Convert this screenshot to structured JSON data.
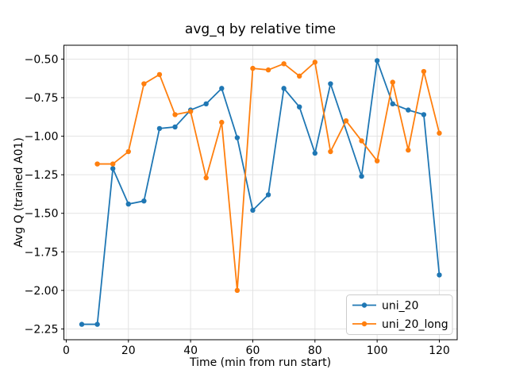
{
  "chart_data": {
    "type": "line",
    "title": "avg_q by relative time",
    "xlabel": "Time (min from run start)",
    "ylabel": "Avg Q (trained A01)",
    "xlim": [
      -0.75,
      125.75
    ],
    "ylim": [
      -2.32,
      -0.41
    ],
    "xticks": [
      0,
      20,
      40,
      60,
      80,
      100,
      120
    ],
    "yticks": [
      -2.25,
      -2.0,
      -1.75,
      -1.5,
      -1.25,
      -1.0,
      -0.75,
      -0.5
    ],
    "grid": true,
    "background_color": "#ffffff",
    "grid_color": "#e3e3e3",
    "legend": {
      "position": "lower right",
      "entries": [
        "uni_20",
        "uni_20_long"
      ]
    },
    "series": [
      {
        "name": "uni_20",
        "color": "#1f77b4",
        "x": [
          5,
          10,
          15,
          20,
          25,
          30,
          35,
          40,
          45,
          50,
          55,
          60,
          65,
          70,
          75,
          80,
          85,
          95,
          100,
          105,
          110,
          115,
          120
        ],
        "y": [
          -2.22,
          -2.22,
          -1.21,
          -1.44,
          -1.42,
          -0.95,
          -0.94,
          -0.83,
          -0.79,
          -0.69,
          -1.01,
          -1.48,
          -1.38,
          -0.69,
          -0.81,
          -1.11,
          -0.66,
          -1.26,
          -0.51,
          -0.79,
          -0.83,
          -0.86,
          -1.9
        ]
      },
      {
        "name": "uni_20_long",
        "color": "#ff7f0e",
        "x": [
          10,
          15,
          20,
          25,
          30,
          35,
          40,
          45,
          50,
          55,
          60,
          65,
          70,
          75,
          80,
          85,
          90,
          95,
          100,
          105,
          110,
          115,
          120
        ],
        "y": [
          -1.18,
          -1.18,
          -1.1,
          -0.66,
          -0.6,
          -0.86,
          -0.84,
          -1.27,
          -0.91,
          -2.0,
          -0.56,
          -0.57,
          -0.53,
          -0.61,
          -0.52,
          -1.1,
          -0.9,
          -1.03,
          -1.16,
          -0.65,
          -1.09,
          -0.58,
          -0.98
        ]
      }
    ]
  }
}
